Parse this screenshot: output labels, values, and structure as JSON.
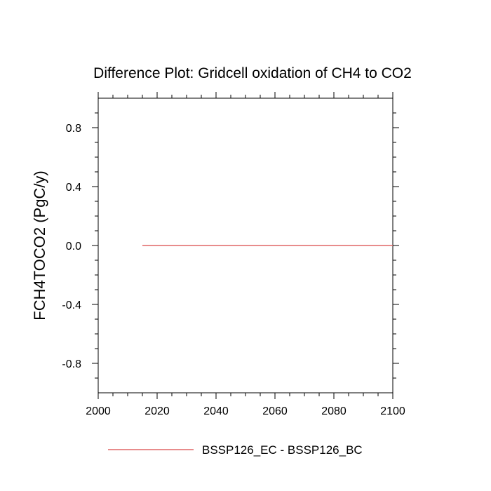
{
  "chart_data": {
    "type": "line",
    "title": "Difference Plot: Gridcell oxidation of CH4 to CO2",
    "xlabel": "",
    "ylabel": "FCH4TOCO2  (PgC/y)",
    "xlim": [
      2000,
      2100
    ],
    "ylim": [
      -1.0,
      1.0
    ],
    "x_ticks": [
      2000,
      2020,
      2040,
      2060,
      2080,
      2100
    ],
    "x_tick_labels": [
      "2000",
      "2020",
      "2040",
      "2060",
      "2080",
      "2100"
    ],
    "y_ticks": [
      -0.8,
      -0.4,
      0.0,
      0.4,
      0.8
    ],
    "y_tick_labels": [
      "-0.8",
      "-0.4",
      "0.0",
      "0.4",
      "0.8"
    ],
    "grid": false,
    "legend_position": "bottom",
    "series": [
      {
        "name": "BSSP126_EC - BSSP126_BC",
        "color": "#e06666",
        "x": [
          2015,
          2100
        ],
        "y": [
          0.0,
          0.0
        ]
      }
    ]
  }
}
